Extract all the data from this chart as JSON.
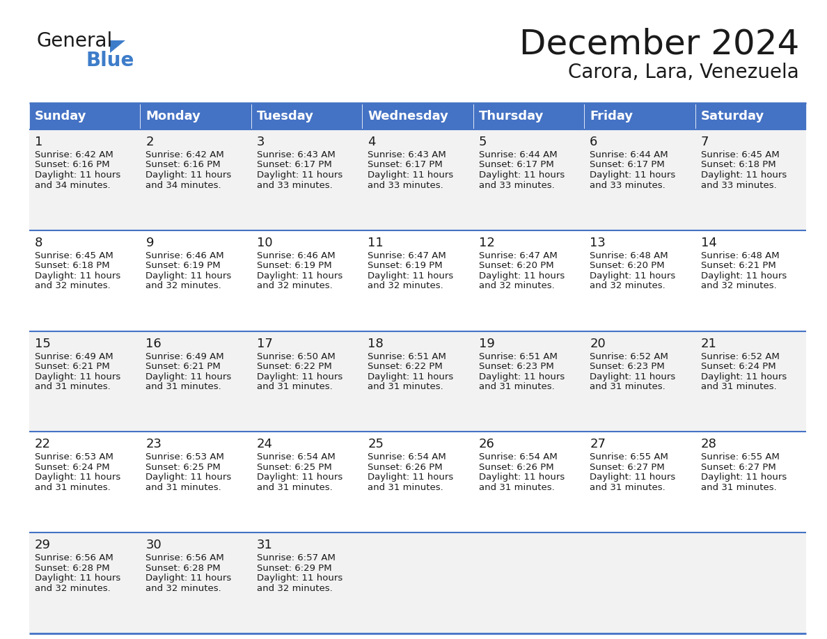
{
  "title": "December 2024",
  "subtitle": "Carora, Lara, Venezuela",
  "header_color": "#4472C4",
  "header_text_color": "#FFFFFF",
  "cell_bg_odd": "#F2F2F2",
  "cell_bg_even": "#FFFFFF",
  "border_color": "#4472C4",
  "days_of_week": [
    "Sunday",
    "Monday",
    "Tuesday",
    "Wednesday",
    "Thursday",
    "Friday",
    "Saturday"
  ],
  "weeks": [
    [
      {
        "day": "1",
        "sunrise": "6:42 AM",
        "sunset": "6:16 PM",
        "daylight_min": "34 minutes."
      },
      {
        "day": "2",
        "sunrise": "6:42 AM",
        "sunset": "6:16 PM",
        "daylight_min": "34 minutes."
      },
      {
        "day": "3",
        "sunrise": "6:43 AM",
        "sunset": "6:17 PM",
        "daylight_min": "33 minutes."
      },
      {
        "day": "4",
        "sunrise": "6:43 AM",
        "sunset": "6:17 PM",
        "daylight_min": "33 minutes."
      },
      {
        "day": "5",
        "sunrise": "6:44 AM",
        "sunset": "6:17 PM",
        "daylight_min": "33 minutes."
      },
      {
        "day": "6",
        "sunrise": "6:44 AM",
        "sunset": "6:17 PM",
        "daylight_min": "33 minutes."
      },
      {
        "day": "7",
        "sunrise": "6:45 AM",
        "sunset": "6:18 PM",
        "daylight_min": "33 minutes."
      }
    ],
    [
      {
        "day": "8",
        "sunrise": "6:45 AM",
        "sunset": "6:18 PM",
        "daylight_min": "32 minutes."
      },
      {
        "day": "9",
        "sunrise": "6:46 AM",
        "sunset": "6:19 PM",
        "daylight_min": "32 minutes."
      },
      {
        "day": "10",
        "sunrise": "6:46 AM",
        "sunset": "6:19 PM",
        "daylight_min": "32 minutes."
      },
      {
        "day": "11",
        "sunrise": "6:47 AM",
        "sunset": "6:19 PM",
        "daylight_min": "32 minutes."
      },
      {
        "day": "12",
        "sunrise": "6:47 AM",
        "sunset": "6:20 PM",
        "daylight_min": "32 minutes."
      },
      {
        "day": "13",
        "sunrise": "6:48 AM",
        "sunset": "6:20 PM",
        "daylight_min": "32 minutes."
      },
      {
        "day": "14",
        "sunrise": "6:48 AM",
        "sunset": "6:21 PM",
        "daylight_min": "32 minutes."
      }
    ],
    [
      {
        "day": "15",
        "sunrise": "6:49 AM",
        "sunset": "6:21 PM",
        "daylight_min": "31 minutes."
      },
      {
        "day": "16",
        "sunrise": "6:49 AM",
        "sunset": "6:21 PM",
        "daylight_min": "31 minutes."
      },
      {
        "day": "17",
        "sunrise": "6:50 AM",
        "sunset": "6:22 PM",
        "daylight_min": "31 minutes."
      },
      {
        "day": "18",
        "sunrise": "6:51 AM",
        "sunset": "6:22 PM",
        "daylight_min": "31 minutes."
      },
      {
        "day": "19",
        "sunrise": "6:51 AM",
        "sunset": "6:23 PM",
        "daylight_min": "31 minutes."
      },
      {
        "day": "20",
        "sunrise": "6:52 AM",
        "sunset": "6:23 PM",
        "daylight_min": "31 minutes."
      },
      {
        "day": "21",
        "sunrise": "6:52 AM",
        "sunset": "6:24 PM",
        "daylight_min": "31 minutes."
      }
    ],
    [
      {
        "day": "22",
        "sunrise": "6:53 AM",
        "sunset": "6:24 PM",
        "daylight_min": "31 minutes."
      },
      {
        "day": "23",
        "sunrise": "6:53 AM",
        "sunset": "6:25 PM",
        "daylight_min": "31 minutes."
      },
      {
        "day": "24",
        "sunrise": "6:54 AM",
        "sunset": "6:25 PM",
        "daylight_min": "31 minutes."
      },
      {
        "day": "25",
        "sunrise": "6:54 AM",
        "sunset": "6:26 PM",
        "daylight_min": "31 minutes."
      },
      {
        "day": "26",
        "sunrise": "6:54 AM",
        "sunset": "6:26 PM",
        "daylight_min": "31 minutes."
      },
      {
        "day": "27",
        "sunrise": "6:55 AM",
        "sunset": "6:27 PM",
        "daylight_min": "31 minutes."
      },
      {
        "day": "28",
        "sunrise": "6:55 AM",
        "sunset": "6:27 PM",
        "daylight_min": "31 minutes."
      }
    ],
    [
      {
        "day": "29",
        "sunrise": "6:56 AM",
        "sunset": "6:28 PM",
        "daylight_min": "32 minutes."
      },
      {
        "day": "30",
        "sunrise": "6:56 AM",
        "sunset": "6:28 PM",
        "daylight_min": "32 minutes."
      },
      {
        "day": "31",
        "sunrise": "6:57 AM",
        "sunset": "6:29 PM",
        "daylight_min": "32 minutes."
      },
      null,
      null,
      null,
      null
    ]
  ],
  "logo_color_general": "#1a1a1a",
  "logo_color_blue": "#3d7cc9",
  "title_fontsize": 36,
  "subtitle_fontsize": 20,
  "header_fontsize": 13,
  "day_num_fontsize": 13,
  "cell_fontsize": 9.5,
  "daylight_hours": "11"
}
